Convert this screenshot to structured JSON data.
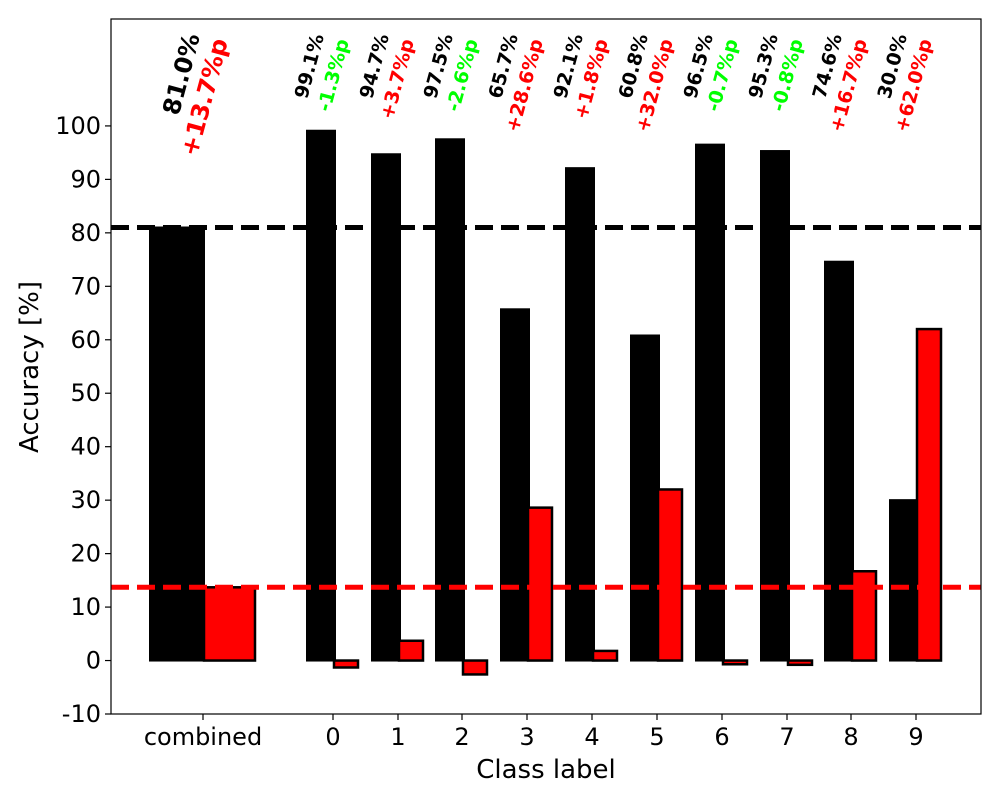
{
  "chart_data": {
    "type": "bar",
    "title": "",
    "xlabel": "Class label",
    "ylabel": "Accuracy [%]",
    "ylim": [
      -10,
      120
    ],
    "yticks": [
      -10,
      0,
      10,
      20,
      30,
      40,
      50,
      60,
      70,
      80,
      90,
      100
    ],
    "ytick_labels": [
      "-10",
      "0",
      "10",
      "20",
      "30",
      "40",
      "50",
      "60",
      "70",
      "80",
      "90",
      "100"
    ],
    "grid": false,
    "categories": [
      "combined",
      "0",
      "1",
      "2",
      "3",
      "4",
      "5",
      "6",
      "7",
      "8",
      "9"
    ],
    "series": [
      {
        "color": "#000000",
        "values": [
          81.0,
          99.1,
          94.7,
          97.5,
          65.7,
          92.1,
          60.8,
          96.5,
          95.3,
          74.6,
          30.0
        ]
      },
      {
        "color": "#ff0000",
        "values": [
          13.7,
          -1.3,
          3.7,
          -2.6,
          28.6,
          1.8,
          32.0,
          -0.7,
          -0.8,
          16.7,
          62.0
        ]
      }
    ],
    "reference_lines": [
      {
        "y": 81.0,
        "color": "#000000",
        "style": "dashed"
      },
      {
        "y": 13.7,
        "color": "#ff0000",
        "style": "dashed"
      }
    ],
    "annotations": {
      "accuracy": [
        "81.0%",
        "99.1%",
        "94.7%",
        "97.5%",
        "65.7%",
        "92.1%",
        "60.8%",
        "96.5%",
        "95.3%",
        "74.6%",
        "30.0%"
      ],
      "change": [
        "+13.7%p",
        "-1.3%p",
        "+3.7%p",
        "-2.6%p",
        "+28.6%p",
        "+1.8%p",
        "+32.0%p",
        "-0.7%p",
        "-0.8%p",
        "+16.7%p",
        "+62.0%p"
      ]
    },
    "colors": {
      "baseline": "#000000",
      "increase": "#ff0000",
      "decrease": "#00ff00"
    }
  }
}
